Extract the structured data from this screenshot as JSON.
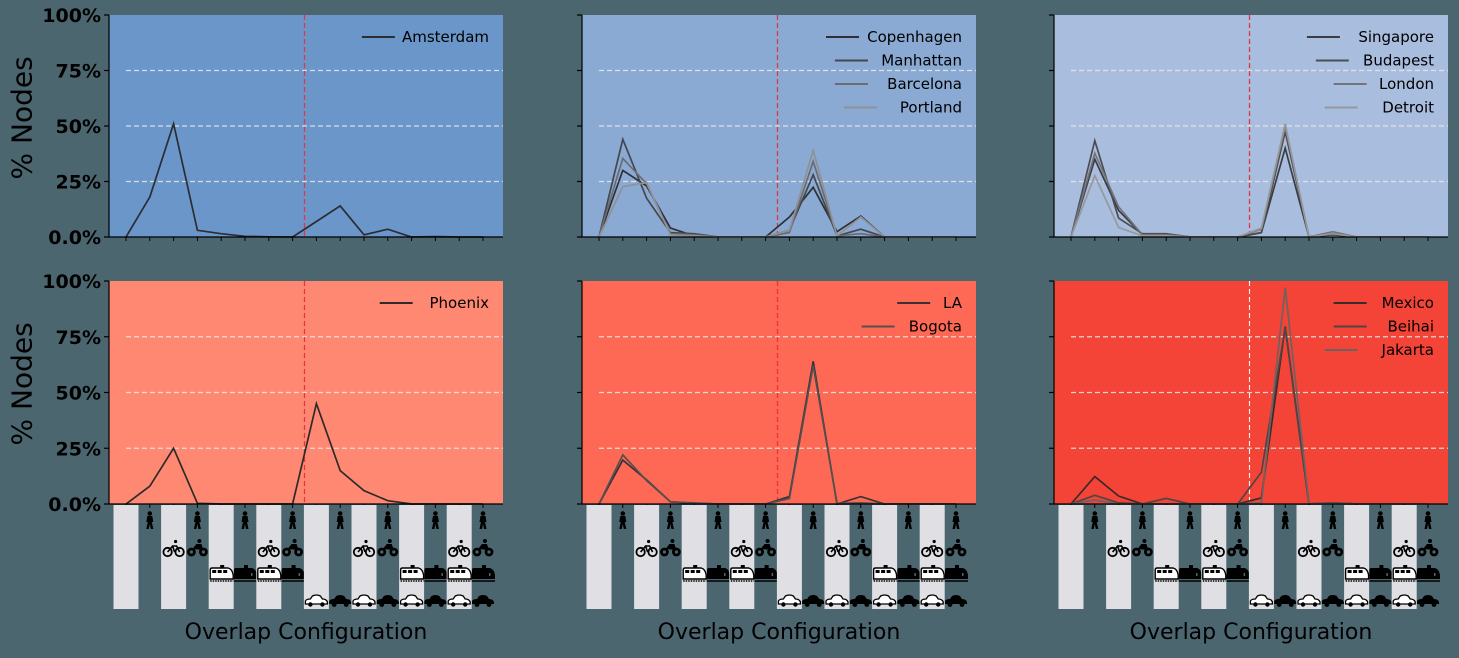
{
  "figure": {
    "background": "#4c6670",
    "ylabel": "% Nodes",
    "xlabel": "Overlap Configuration",
    "ytick_labels": [
      "0.0%",
      "25%",
      "50%",
      "75%",
      "100%"
    ],
    "stripe_color": "#e0dfe3",
    "divider_color_red": "#e8343f",
    "divider_color_white": "#ffffff",
    "config_icons": {
      "rows": [
        "walk-icon",
        "bike-icon",
        "rail-icon",
        "car-icon"
      ],
      "columns": [
        [],
        [
          "walk"
        ],
        [
          "bike"
        ],
        [
          "walk",
          "bike"
        ],
        [
          "rail"
        ],
        [
          "walk",
          "rail"
        ],
        [
          "bike",
          "rail"
        ],
        [
          "walk",
          "bike",
          "rail"
        ],
        [
          "car"
        ],
        [
          "walk",
          "car"
        ],
        [
          "bike",
          "car"
        ],
        [
          "walk",
          "bike",
          "car"
        ],
        [
          "rail",
          "car"
        ],
        [
          "walk",
          "rail",
          "car"
        ],
        [
          "bike",
          "rail",
          "car"
        ],
        [
          "walk",
          "bike",
          "rail",
          "car"
        ]
      ]
    }
  },
  "chart_data": [
    {
      "type": "line",
      "row": 0,
      "col": 0,
      "title": "",
      "xlabel": "",
      "ylabel": "% Nodes",
      "background": "#6a96c9",
      "divider": "red",
      "x": [
        0,
        1,
        2,
        3,
        4,
        5,
        6,
        7,
        8,
        9,
        10,
        11,
        12,
        13,
        14,
        15
      ],
      "ylim": [
        0,
        100
      ],
      "yticks": [
        0,
        25,
        50,
        75,
        100
      ],
      "grid": {
        "y": [
          25,
          50,
          75
        ],
        "style": "dashed"
      },
      "legend_position": "upper right",
      "series": [
        {
          "name": "Amsterdam",
          "color": "#2b2d33",
          "values": [
            0,
            18,
            51,
            3,
            1.5,
            0.3,
            0.1,
            0,
            7,
            14,
            1,
            3.5,
            0,
            0.2,
            0,
            0
          ]
        }
      ]
    },
    {
      "type": "line",
      "row": 0,
      "col": 1,
      "background": "#8aaad4",
      "divider": "red",
      "x": [
        0,
        1,
        2,
        3,
        4,
        5,
        6,
        7,
        8,
        9,
        10,
        11,
        12,
        13,
        14,
        15
      ],
      "ylim": [
        0,
        100
      ],
      "yticks": [
        0,
        25,
        50,
        75,
        100
      ],
      "grid": {
        "y": [
          25,
          50,
          75
        ],
        "style": "dashed"
      },
      "legend_position": "upper right",
      "series": [
        {
          "name": "Copenhagen",
          "color": "#2e3036",
          "values": [
            0,
            30,
            23,
            4,
            0.5,
            0,
            0,
            0,
            9,
            22.4,
            2.4,
            9.4,
            0,
            0,
            0,
            0
          ]
        },
        {
          "name": "Manhattan",
          "color": "#44474d",
          "values": [
            0,
            44,
            17.5,
            2,
            1.5,
            0,
            0,
            0,
            3,
            28,
            0.5,
            3.5,
            0,
            0,
            0,
            0
          ]
        },
        {
          "name": "Barcelona",
          "color": "#6a6c72",
          "values": [
            0,
            35.4,
            24,
            1.5,
            1,
            0,
            0,
            0,
            2,
            34,
            0.5,
            1.5,
            0,
            0,
            0,
            0
          ]
        },
        {
          "name": "Portland",
          "color": "#8f9196",
          "values": [
            0,
            22.7,
            24.5,
            1,
            0.5,
            0,
            0,
            0,
            3,
            39,
            0.5,
            9,
            0,
            0,
            0,
            0
          ]
        }
      ]
    },
    {
      "type": "line",
      "row": 0,
      "col": 2,
      "background": "#a9bddf",
      "divider": "red",
      "x": [
        0,
        1,
        2,
        3,
        4,
        5,
        6,
        7,
        8,
        9,
        10,
        11,
        12,
        13,
        14,
        15
      ],
      "ylim": [
        0,
        100
      ],
      "yticks": [
        0,
        25,
        50,
        75,
        100
      ],
      "grid": {
        "y": [
          25,
          50,
          75
        ],
        "style": "dashed"
      },
      "legend_position": "upper right",
      "series": [
        {
          "name": "Singapore",
          "color": "#3a3c42",
          "values": [
            0,
            35,
            12,
            1,
            1,
            0,
            0,
            0,
            2,
            40,
            0,
            1,
            0,
            0,
            0,
            0
          ]
        },
        {
          "name": "Budapest",
          "color": "#4b4d53",
          "values": [
            0,
            43.4,
            8.5,
            1.5,
            1.5,
            0,
            0,
            0,
            2,
            47.4,
            0,
            1.5,
            0,
            0,
            0,
            0
          ]
        },
        {
          "name": "London",
          "color": "#737579",
          "values": [
            0,
            37.7,
            13.6,
            1,
            1,
            0,
            0,
            0,
            3.5,
            49.7,
            0,
            2.4,
            0,
            0,
            0,
            0
          ]
        },
        {
          "name": "Detroit",
          "color": "#96989c",
          "values": [
            0,
            27.6,
            4.3,
            0.5,
            0.5,
            0,
            0,
            0,
            4,
            51,
            0,
            1.5,
            0,
            0,
            0,
            0
          ]
        }
      ]
    },
    {
      "type": "line",
      "row": 1,
      "col": 0,
      "background": "#ff8872",
      "divider": "red",
      "x": [
        0,
        1,
        2,
        3,
        4,
        5,
        6,
        7,
        8,
        9,
        10,
        11,
        12,
        13,
        14,
        15
      ],
      "ylim": [
        0,
        100
      ],
      "yticks": [
        0,
        25,
        50,
        75,
        100
      ],
      "grid": {
        "y": [
          25,
          50,
          75
        ],
        "style": "dashed"
      },
      "legend_position": "upper right",
      "series": [
        {
          "name": "Phoenix",
          "color": "#2e2a2a",
          "values": [
            0,
            8,
            25,
            0.3,
            0,
            0,
            0,
            0,
            45,
            15,
            6,
            1.5,
            0,
            0,
            0,
            0
          ]
        }
      ]
    },
    {
      "type": "line",
      "row": 1,
      "col": 1,
      "background": "#fe6955",
      "divider": "red",
      "x": [
        0,
        1,
        2,
        3,
        4,
        5,
        6,
        7,
        8,
        9,
        10,
        11,
        12,
        13,
        14,
        15
      ],
      "ylim": [
        0,
        100
      ],
      "yticks": [
        0,
        25,
        50,
        75,
        100
      ],
      "grid": {
        "y": [
          25,
          50,
          75
        ],
        "style": "dashed"
      },
      "legend_position": "upper right",
      "series": [
        {
          "name": "LA",
          "color": "#3a3232",
          "values": [
            0,
            19.7,
            10.8,
            1,
            0.3,
            0,
            0,
            0,
            3.3,
            64,
            0,
            3.3,
            0,
            0,
            0,
            0
          ]
        },
        {
          "name": "Bogota",
          "color": "#555050",
          "values": [
            0,
            22,
            10.5,
            1,
            0.5,
            0,
            0,
            0,
            2.4,
            62,
            0.3,
            0.5,
            0,
            0,
            0,
            0
          ]
        }
      ]
    },
    {
      "type": "line",
      "row": 1,
      "col": 2,
      "background": "#f34437",
      "divider": "white",
      "x": [
        0,
        1,
        2,
        3,
        4,
        5,
        6,
        7,
        8,
        9,
        10,
        11,
        12,
        13,
        14,
        15
      ],
      "ylim": [
        0,
        100
      ],
      "yticks": [
        0,
        25,
        50,
        75,
        100
      ],
      "grid": {
        "y": [
          25,
          50,
          75
        ],
        "style": "dashed"
      },
      "legend_position": "upper right",
      "series": [
        {
          "name": "Mexico",
          "color": "#3a2a2a",
          "values": [
            0,
            12.3,
            3.6,
            0,
            0,
            0,
            0,
            0,
            2.7,
            79.5,
            0,
            0.5,
            0,
            0,
            0,
            0
          ]
        },
        {
          "name": "Beihai",
          "color": "#4f4545",
          "values": [
            0,
            3.9,
            0.5,
            0,
            2.5,
            0,
            0,
            0,
            14.2,
            79,
            0,
            0.5,
            0,
            0,
            0,
            0
          ]
        },
        {
          "name": "Jakarta",
          "color": "#6b6262",
          "values": [
            0,
            1.8,
            0,
            0,
            0,
            0,
            0,
            0,
            0.5,
            97,
            0,
            0.3,
            0,
            0,
            0,
            0
          ]
        }
      ]
    }
  ]
}
